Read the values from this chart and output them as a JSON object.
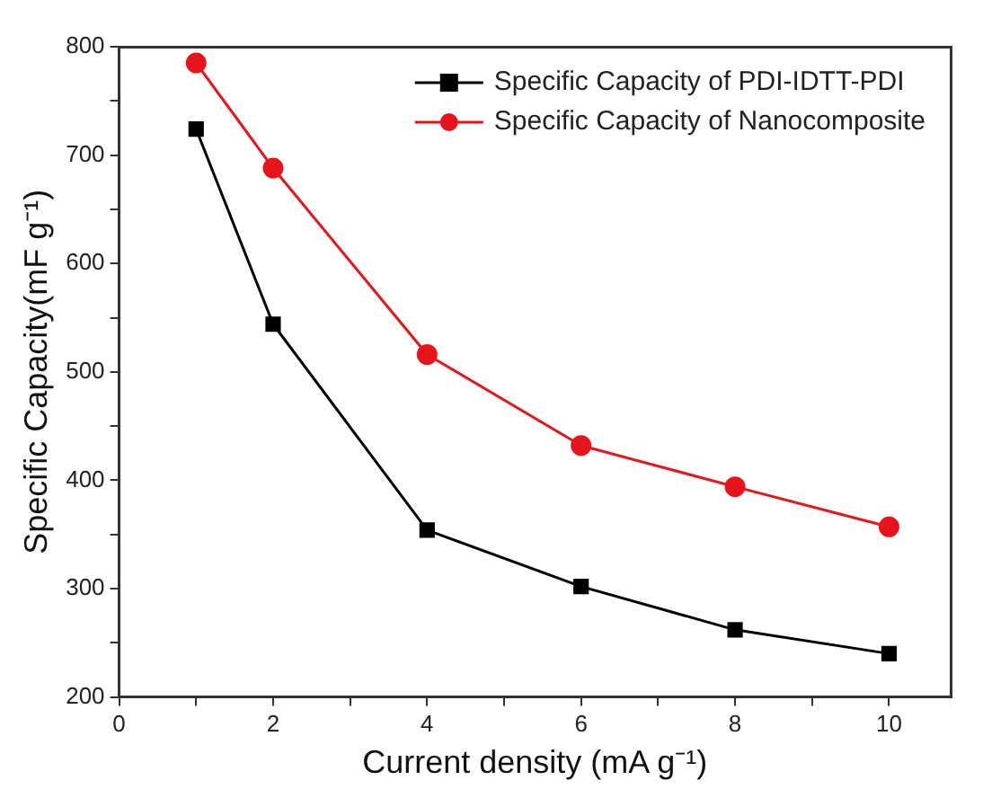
{
  "chart_data": {
    "type": "line",
    "xlabel": "Current density (mA g⁻¹)",
    "ylabel": "Specific Capacity(mF g⁻¹)",
    "x": [
      1,
      2,
      4,
      6,
      8,
      10
    ],
    "series": [
      {
        "name": "Specific Capacity of PDI-IDTT-PDI",
        "color": "#000000",
        "marker": "square",
        "values": [
          724,
          544,
          354,
          302,
          262,
          240
        ]
      },
      {
        "name": "Specific Capacity of Nanocomposite",
        "color": "#e8141c",
        "marker": "circle",
        "values": [
          785,
          688,
          516,
          432,
          394,
          357
        ]
      }
    ],
    "xlim": [
      0,
      10.8
    ],
    "xticks": [
      0,
      {
        "value": 1,
        "label": null
      },
      2,
      {
        "value": 3,
        "label": null
      },
      4,
      {
        "value": 5,
        "label": null
      },
      6,
      {
        "value": 7,
        "label": null
      },
      8,
      {
        "value": 9,
        "label": null
      },
      10
    ],
    "ylim": [
      200,
      800
    ],
    "yticks": [
      200,
      {
        "value": 250,
        "label": null
      },
      300,
      {
        "value": 350,
        "label": null
      },
      400,
      {
        "value": 450,
        "label": null
      },
      500,
      {
        "value": 550,
        "label": null
      },
      600,
      {
        "value": 650,
        "label": null
      },
      700,
      {
        "value": 750,
        "label": null
      },
      800
    ],
    "grid": false,
    "legend": "top right",
    "line_style": "solid"
  }
}
